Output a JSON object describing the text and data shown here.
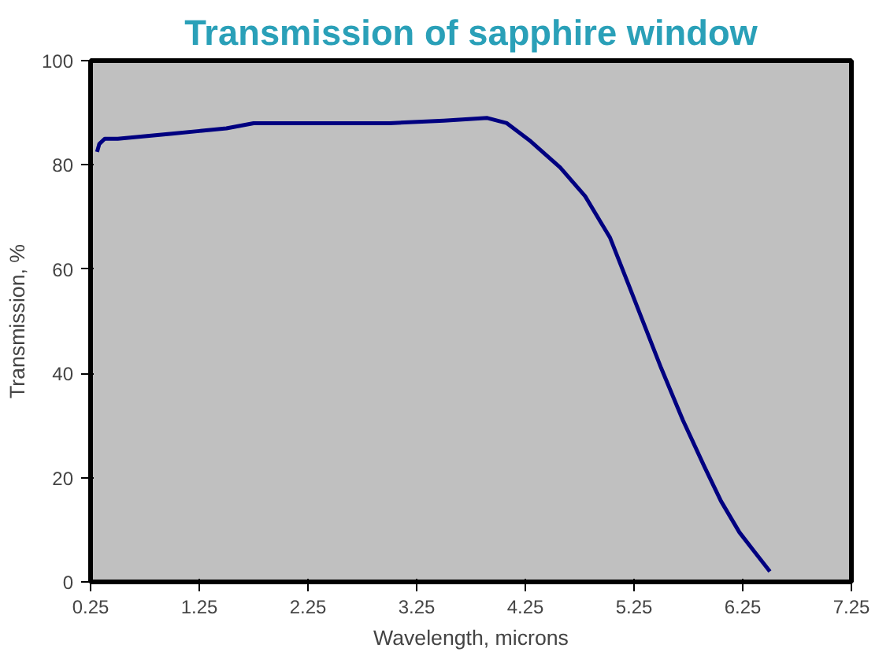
{
  "chart_data": {
    "type": "line",
    "title": "Transmission of sapphire window",
    "xlabel": "Wavelength, microns",
    "ylabel": "Transmission, %",
    "x": [
      0.31,
      0.33,
      0.38,
      0.5,
      0.75,
      1.0,
      1.25,
      1.5,
      1.75,
      2.0,
      2.5,
      3.0,
      3.5,
      3.9,
      4.08,
      4.3,
      4.57,
      4.8,
      5.03,
      5.2,
      5.5,
      5.7,
      5.9,
      6.05,
      6.22,
      6.35,
      6.5
    ],
    "series": [
      {
        "color": "#000080",
        "values": [
          82.5,
          84,
          85,
          85,
          85.5,
          86,
          86.5,
          87,
          88,
          88,
          88,
          88,
          88.5,
          89,
          88,
          84.5,
          79.5,
          74,
          66,
          57,
          41,
          31,
          22,
          15.5,
          9.5,
          6,
          2
        ]
      }
    ],
    "xlim": [
      0.25,
      7.25
    ],
    "ylim": [
      0,
      100
    ],
    "xticks": [
      {
        "value": 0.25,
        "label": "0.25"
      },
      {
        "value": 1.25,
        "label": "1.25"
      },
      {
        "value": 2.25,
        "label": "2.25"
      },
      {
        "value": 3.25,
        "label": "3.25"
      },
      {
        "value": 4.25,
        "label": "4.25"
      },
      {
        "value": 5.25,
        "label": "5.25"
      },
      {
        "value": 6.25,
        "label": "6.25"
      },
      {
        "value": 7.25,
        "label": "7.25"
      }
    ],
    "yticks": [
      0,
      20,
      40,
      60,
      80,
      100
    ],
    "marker": "none",
    "line_style": "solid"
  }
}
